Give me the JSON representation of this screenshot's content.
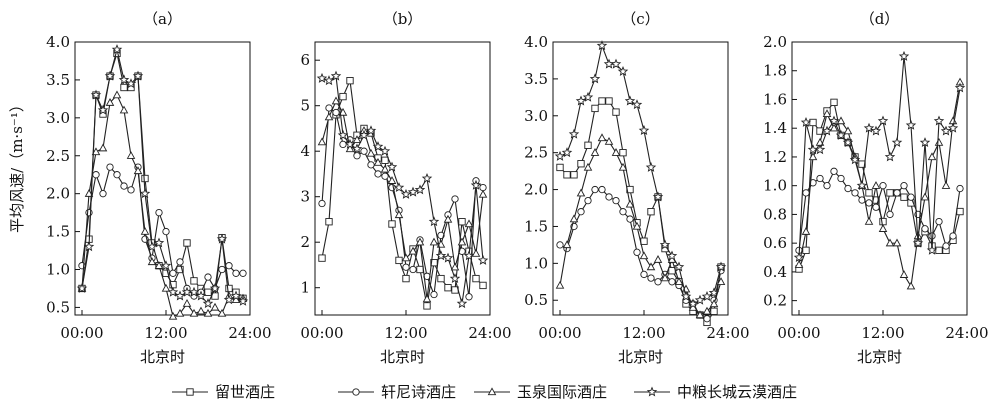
{
  "ylabel": "平均风速/（m·s⁻¹）",
  "legend": [
    {
      "name": "留世酒庄",
      "marker": "square"
    },
    {
      "name": "轩尼诗酒庄",
      "marker": "circle"
    },
    {
      "name": "玉泉国际酒庄",
      "marker": "triangle"
    },
    {
      "name": "中粮长城云漠酒庄",
      "marker": "star"
    }
  ],
  "chart_data": [
    {
      "type": "line",
      "title": "（a）",
      "xlabel": "北京时",
      "ylabel": "平均风速/（m·s⁻¹）",
      "x_ticks": [
        "00:00",
        "12:00",
        "24:00"
      ],
      "y_ticks": [
        "0.5",
        "1.0",
        "1.5",
        "2.0",
        "2.5",
        "3.0",
        "3.5",
        "4.0"
      ],
      "xlim": [
        -1,
        24
      ],
      "ylim": [
        0.4,
        4.0
      ],
      "x": [
        0,
        1,
        2,
        3,
        4,
        5,
        6,
        7,
        8,
        9,
        10,
        11,
        12,
        13,
        14,
        15,
        16,
        17,
        18,
        19,
        20,
        21,
        22,
        23
      ],
      "series": [
        {
          "name": "留世酒庄",
          "values": [
            0.75,
            1.4,
            3.3,
            3.05,
            3.55,
            3.85,
            3.4,
            3.4,
            3.55,
            2.2,
            1.35,
            1.05,
            0.95,
            0.8,
            1.0,
            1.35,
            0.85,
            0.75,
            0.7,
            0.65,
            1.42,
            0.75,
            0.7,
            0.62
          ]
        },
        {
          "name": "轩尼诗酒庄",
          "values": [
            1.05,
            1.75,
            2.25,
            2.0,
            2.35,
            2.25,
            2.1,
            2.05,
            2.35,
            1.4,
            1.15,
            1.75,
            1.5,
            0.95,
            1.1,
            0.75,
            0.65,
            0.7,
            0.9,
            0.75,
            1.0,
            1.05,
            0.95,
            0.95
          ]
        },
        {
          "name": "玉泉国际酒庄",
          "values": [
            0.75,
            2.0,
            2.55,
            2.6,
            3.2,
            3.3,
            3.1,
            2.5,
            2.3,
            1.5,
            1.1,
            1.05,
            0.75,
            0.38,
            0.42,
            0.55,
            0.42,
            0.45,
            0.42,
            0.5,
            0.42,
            0.65,
            0.6,
            0.62
          ]
        },
        {
          "name": "中粮长城云漠酒庄",
          "values": [
            0.75,
            1.3,
            3.3,
            3.1,
            3.55,
            3.9,
            3.5,
            3.45,
            3.55,
            2.0,
            1.3,
            1.35,
            1.05,
            0.7,
            0.65,
            0.7,
            0.7,
            0.65,
            0.55,
            0.75,
            1.4,
            0.6,
            0.65,
            0.58
          ]
        }
      ]
    },
    {
      "type": "line",
      "title": "（b）",
      "xlabel": "北京时",
      "ylabel": "",
      "x_ticks": [
        "00:00",
        "12:00",
        "24:00"
      ],
      "y_ticks": [
        "1",
        "2",
        "3",
        "4",
        "5",
        "6"
      ],
      "xlim": [
        -1,
        24
      ],
      "ylim": [
        0.4,
        6.4
      ],
      "x": [
        0,
        1,
        2,
        3,
        4,
        5,
        6,
        7,
        8,
        9,
        10,
        11,
        12,
        13,
        14,
        15,
        16,
        17,
        18,
        19,
        20,
        21,
        22,
        23
      ],
      "series": [
        {
          "name": "留世酒庄",
          "values": [
            1.65,
            2.45,
            4.8,
            5.2,
            5.55,
            4.35,
            4.5,
            4.4,
            3.85,
            3.8,
            2.4,
            1.6,
            1.2,
            1.85,
            1.4,
            0.6,
            1.55,
            1.2,
            1.0,
            0.95,
            2.45,
            1.8,
            1.2,
            1.05
          ]
        },
        {
          "name": "轩尼诗酒庄",
          "values": [
            2.85,
            4.95,
            4.85,
            4.15,
            4.25,
            3.9,
            4.0,
            3.7,
            3.5,
            3.45,
            3.2,
            2.7,
            1.45,
            1.4,
            2.05,
            1.25,
            0.85,
            2.15,
            2.6,
            2.95,
            1.8,
            0.8,
            3.35,
            3.2
          ]
        },
        {
          "name": "玉泉国际酒庄",
          "values": [
            4.2,
            4.75,
            5.1,
            4.85,
            4.05,
            4.25,
            4.45,
            3.95,
            3.75,
            3.6,
            3.35,
            2.6,
            1.65,
            1.8,
            2.0,
            0.75,
            2.0,
            1.95,
            2.5,
            1.45,
            2.0,
            2.4,
            1.75,
            3.05
          ]
        },
        {
          "name": "中粮长城云漠酒庄",
          "values": [
            5.6,
            5.55,
            5.65,
            4.35,
            4.15,
            4.05,
            4.35,
            4.45,
            4.1,
            4.0,
            3.65,
            3.2,
            3.05,
            3.1,
            3.15,
            3.4,
            2.45,
            1.7,
            1.65,
            1.2,
            0.65,
            1.7,
            3.25,
            1.6
          ]
        }
      ]
    },
    {
      "type": "line",
      "title": "（c）",
      "xlabel": "北京时",
      "ylabel": "",
      "x_ticks": [
        "00:00",
        "12:00",
        "24:00"
      ],
      "y_ticks": [
        "0.5",
        "1.0",
        "1.5",
        "2.0",
        "2.5",
        "3.0",
        "3.5",
        "4.0"
      ],
      "xlim": [
        -1,
        24
      ],
      "ylim": [
        0.3,
        4.0
      ],
      "x": [
        0,
        1,
        2,
        3,
        4,
        5,
        6,
        7,
        8,
        9,
        10,
        11,
        12,
        13,
        14,
        15,
        16,
        17,
        18,
        19,
        20,
        21,
        22,
        23
      ],
      "series": [
        {
          "name": "留世酒庄",
          "values": [
            2.3,
            2.2,
            2.2,
            2.35,
            2.6,
            3.1,
            3.2,
            3.2,
            3.05,
            2.5,
            2.0,
            1.55,
            1.3,
            1.7,
            1.9,
            1.2,
            0.9,
            0.75,
            0.45,
            0.35,
            0.3,
            0.2,
            0.35,
            0.95
          ]
        },
        {
          "name": "轩尼诗酒庄",
          "values": [
            1.25,
            1.2,
            1.5,
            1.7,
            1.85,
            2.0,
            2.0,
            1.9,
            1.85,
            1.7,
            1.6,
            1.15,
            0.85,
            0.8,
            0.75,
            0.85,
            0.75,
            0.7,
            0.5,
            0.45,
            0.3,
            0.25,
            0.5,
            0.9
          ]
        },
        {
          "name": "玉泉国际酒庄",
          "values": [
            0.7,
            1.25,
            1.6,
            1.95,
            2.3,
            2.5,
            2.7,
            2.65,
            2.5,
            2.3,
            1.8,
            1.5,
            1.1,
            0.95,
            1.05,
            0.8,
            1.05,
            0.75,
            0.65,
            0.4,
            0.3,
            0.35,
            0.45,
            0.75
          ]
        },
        {
          "name": "中粮长城云漠酒庄",
          "values": [
            2.45,
            2.5,
            2.75,
            3.2,
            3.25,
            3.5,
            3.95,
            3.7,
            3.7,
            3.6,
            3.2,
            3.15,
            2.8,
            2.3,
            1.9,
            1.25,
            1.1,
            0.95,
            0.55,
            0.45,
            0.5,
            0.55,
            0.6,
            0.95
          ]
        }
      ]
    },
    {
      "type": "line",
      "title": "（d）",
      "xlabel": "北京时",
      "ylabel": "",
      "x_ticks": [
        "00:00",
        "12:00",
        "24:00"
      ],
      "y_ticks": [
        "0.2",
        "0.4",
        "0.6",
        "0.8",
        "1.0",
        "1.2",
        "1.4",
        "1.6",
        "1.8",
        "2.0"
      ],
      "xlim": [
        -1,
        24
      ],
      "ylim": [
        0.1,
        2.0
      ],
      "x": [
        0,
        1,
        2,
        3,
        4,
        5,
        6,
        7,
        8,
        9,
        10,
        11,
        12,
        13,
        14,
        15,
        16,
        17,
        18,
        19,
        20,
        21,
        22,
        23
      ],
      "series": [
        {
          "name": "留世酒庄",
          "values": [
            0.42,
            0.55,
            1.44,
            1.38,
            1.52,
            1.58,
            1.35,
            1.3,
            1.2,
            1.15,
            0.95,
            0.9,
            0.75,
            0.95,
            0.95,
            0.92,
            0.88,
            0.6,
            0.68,
            0.58,
            0.55,
            0.55,
            0.62,
            0.82
          ]
        },
        {
          "name": "轩尼诗酒庄",
          "values": [
            0.55,
            0.95,
            1.02,
            1.05,
            1.0,
            1.1,
            1.05,
            0.98,
            0.95,
            0.9,
            0.88,
            0.85,
            1.0,
            0.8,
            0.95,
            1.0,
            0.92,
            0.8,
            0.7,
            0.65,
            0.75,
            0.58,
            0.65,
            0.98
          ]
        },
        {
          "name": "玉泉国际酒庄",
          "values": [
            0.45,
            0.68,
            1.2,
            1.3,
            1.5,
            1.4,
            1.45,
            1.38,
            1.2,
            1.0,
            0.75,
            1.0,
            0.7,
            0.6,
            0.6,
            0.38,
            0.3,
            0.65,
            0.92,
            1.2,
            1.3,
            1.0,
            1.45,
            1.72
          ]
        },
        {
          "name": "中粮长城云漠酒庄",
          "values": [
            0.5,
            1.44,
            1.25,
            1.25,
            1.38,
            1.45,
            1.35,
            1.3,
            1.18,
            1.0,
            1.4,
            1.38,
            1.45,
            1.2,
            1.3,
            1.9,
            1.42,
            0.6,
            1.3,
            0.55,
            1.45,
            1.38,
            1.4,
            1.68
          ]
        }
      ]
    }
  ]
}
